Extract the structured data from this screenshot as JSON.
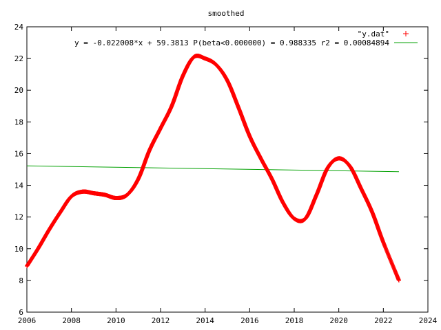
{
  "chart_data": {
    "type": "scatter",
    "title": "smoothed",
    "xlabel": "",
    "ylabel": "",
    "xlim": [
      2006,
      2024
    ],
    "ylim": [
      6,
      24
    ],
    "x_ticks": [
      2006,
      2008,
      2010,
      2012,
      2014,
      2016,
      2018,
      2020,
      2022,
      2024
    ],
    "y_ticks": [
      6,
      8,
      10,
      12,
      14,
      16,
      18,
      20,
      22,
      24
    ],
    "grid": false,
    "legend_position": "top-right",
    "series": [
      {
        "name": "\"y.dat\"",
        "marker": "+",
        "color": "#ff0000",
        "points": [
          [
            2006.0,
            8.9
          ],
          [
            2006.5,
            10.0
          ],
          [
            2007.0,
            11.2
          ],
          [
            2007.5,
            12.3
          ],
          [
            2008.0,
            13.3
          ],
          [
            2008.5,
            13.6
          ],
          [
            2009.0,
            13.5
          ],
          [
            2009.5,
            13.4
          ],
          [
            2010.0,
            13.2
          ],
          [
            2010.5,
            13.4
          ],
          [
            2011.0,
            14.4
          ],
          [
            2011.5,
            16.2
          ],
          [
            2012.0,
            17.6
          ],
          [
            2012.5,
            19.0
          ],
          [
            2013.0,
            20.9
          ],
          [
            2013.5,
            22.1
          ],
          [
            2014.0,
            22.0
          ],
          [
            2014.5,
            21.6
          ],
          [
            2015.0,
            20.6
          ],
          [
            2015.5,
            18.9
          ],
          [
            2016.0,
            17.1
          ],
          [
            2016.5,
            15.7
          ],
          [
            2017.0,
            14.4
          ],
          [
            2017.5,
            12.9
          ],
          [
            2018.0,
            11.9
          ],
          [
            2018.5,
            11.9
          ],
          [
            2019.0,
            13.4
          ],
          [
            2019.5,
            15.1
          ],
          [
            2020.0,
            15.7
          ],
          [
            2020.5,
            15.2
          ],
          [
            2021.0,
            13.8
          ],
          [
            2021.5,
            12.3
          ],
          [
            2022.0,
            10.4
          ],
          [
            2022.7,
            8.0
          ]
        ]
      },
      {
        "name": "y = -0.022008*x + 59.3813 P(beta<0.000000) = 0.988335 r2 = 0.00084894",
        "type": "line",
        "color": "#00a000",
        "points": [
          [
            2006.0,
            15.23
          ],
          [
            2022.7,
            14.86
          ]
        ]
      }
    ]
  }
}
